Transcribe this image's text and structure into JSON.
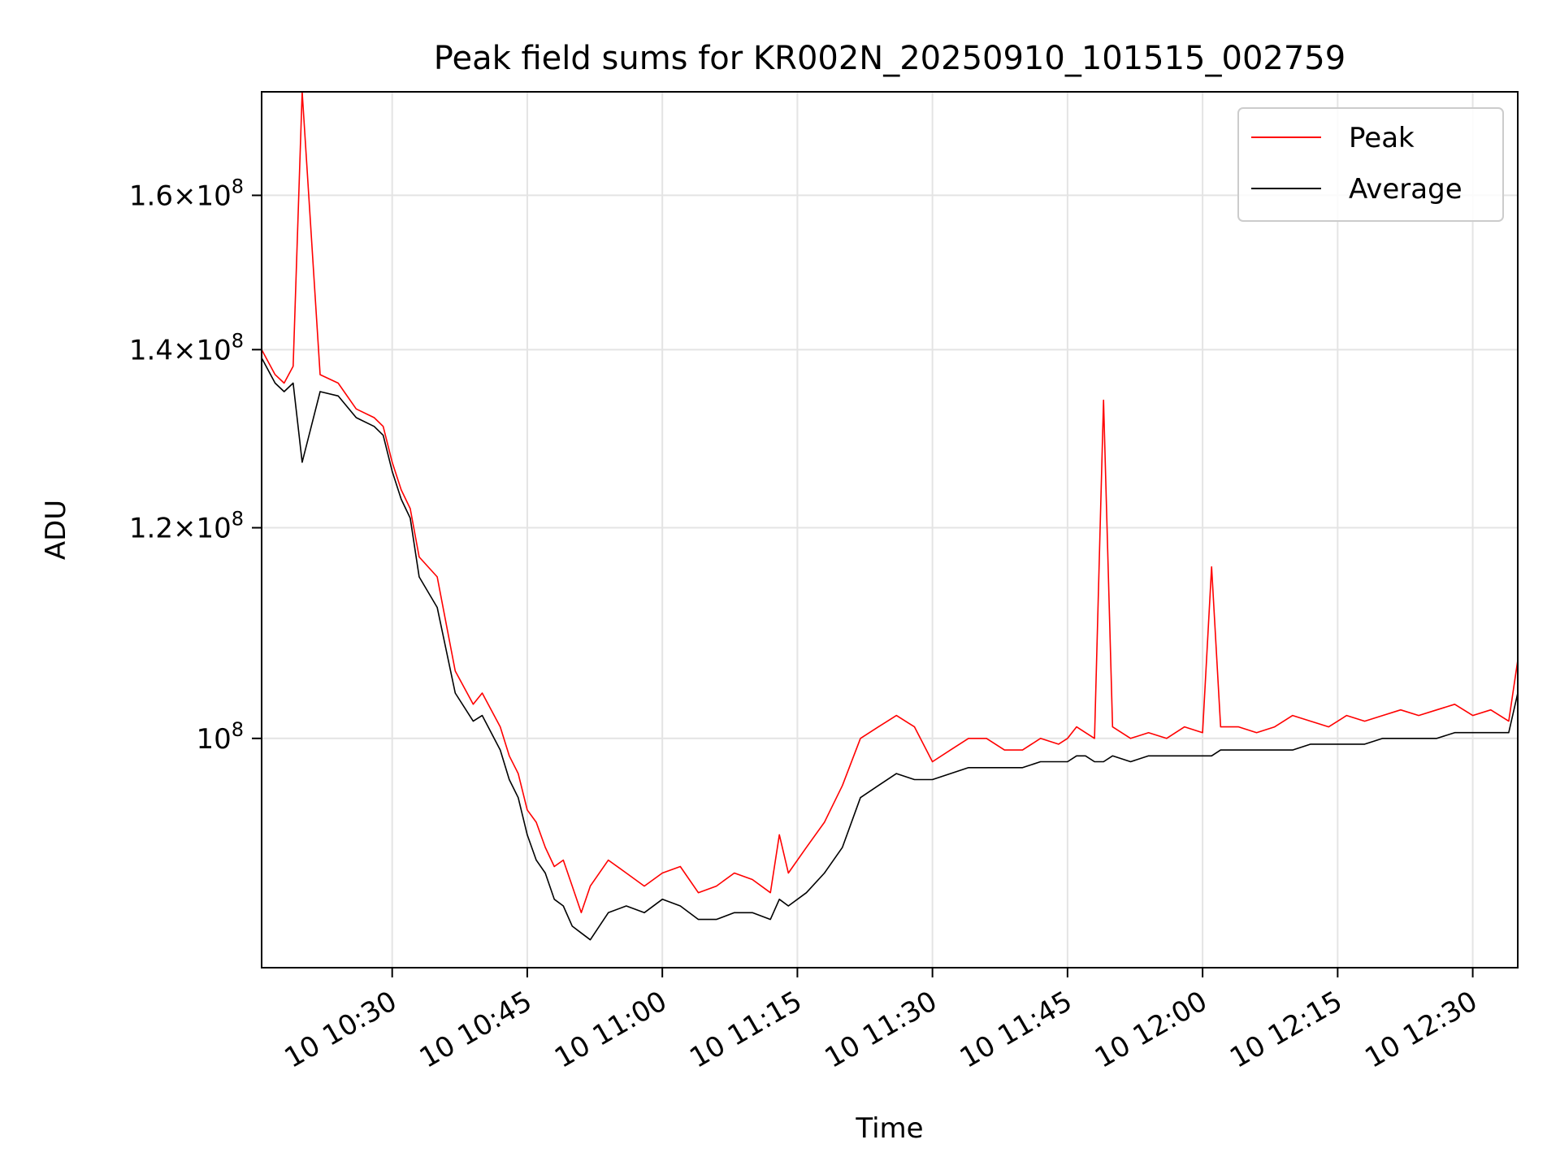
{
  "chart_data": {
    "type": "line",
    "title": "Peak field sums for KR002N_20250910_101515_002759",
    "xlabel": "Time",
    "ylabel": "ADU",
    "yscale": "log",
    "ylim": [
      82000000,
      175000000
    ],
    "xlim": [
      "2025-09-10 10:15:30",
      "2025-09-10 12:35:00"
    ],
    "grid": true,
    "legend_position": "top-right",
    "x_tick_labels": [
      "10 10:30",
      "10 10:45",
      "10 11:00",
      "10 11:15",
      "10 11:30",
      "10 11:45",
      "10 12:00",
      "10 12:15",
      "10 12:30"
    ],
    "y_ticks": [
      {
        "value": 100000000,
        "mantissa": "",
        "base": "10",
        "exp": "8"
      },
      {
        "value": 120000000,
        "mantissa": "1.2",
        "base": "10",
        "exp": "8"
      },
      {
        "value": 140000000,
        "mantissa": "1.4",
        "base": "10",
        "exp": "8"
      },
      {
        "value": 160000000,
        "mantissa": "1.6",
        "base": "10",
        "exp": "8"
      }
    ],
    "x": [
      "2025-09-10 10:15:30",
      "2025-09-10 10:17:00",
      "2025-09-10 10:18:00",
      "2025-09-10 10:19:00",
      "2025-09-10 10:20:00",
      "2025-09-10 10:22:00",
      "2025-09-10 10:24:00",
      "2025-09-10 10:26:00",
      "2025-09-10 10:28:00",
      "2025-09-10 10:29:00",
      "2025-09-10 10:30:00",
      "2025-09-10 10:31:00",
      "2025-09-10 10:32:00",
      "2025-09-10 10:33:00",
      "2025-09-10 10:35:00",
      "2025-09-10 10:37:00",
      "2025-09-10 10:39:00",
      "2025-09-10 10:40:00",
      "2025-09-10 10:42:00",
      "2025-09-10 10:43:00",
      "2025-09-10 10:44:00",
      "2025-09-10 10:45:00",
      "2025-09-10 10:46:00",
      "2025-09-10 10:47:00",
      "2025-09-10 10:48:00",
      "2025-09-10 10:49:00",
      "2025-09-10 10:50:00",
      "2025-09-10 10:51:00",
      "2025-09-10 10:52:00",
      "2025-09-10 10:54:00",
      "2025-09-10 10:56:00",
      "2025-09-10 10:58:00",
      "2025-09-10 11:00:00",
      "2025-09-10 11:02:00",
      "2025-09-10 11:04:00",
      "2025-09-10 11:06:00",
      "2025-09-10 11:08:00",
      "2025-09-10 11:10:00",
      "2025-09-10 11:12:00",
      "2025-09-10 11:13:00",
      "2025-09-10 11:14:00",
      "2025-09-10 11:16:00",
      "2025-09-10 11:18:00",
      "2025-09-10 11:20:00",
      "2025-09-10 11:22:00",
      "2025-09-10 11:24:00",
      "2025-09-10 11:26:00",
      "2025-09-10 11:28:00",
      "2025-09-10 11:30:00",
      "2025-09-10 11:32:00",
      "2025-09-10 11:34:00",
      "2025-09-10 11:36:00",
      "2025-09-10 11:38:00",
      "2025-09-10 11:40:00",
      "2025-09-10 11:42:00",
      "2025-09-10 11:44:00",
      "2025-09-10 11:45:00",
      "2025-09-10 11:46:00",
      "2025-09-10 11:47:00",
      "2025-09-10 11:48:00",
      "2025-09-10 11:49:00",
      "2025-09-10 11:50:00",
      "2025-09-10 11:52:00",
      "2025-09-10 11:54:00",
      "2025-09-10 11:56:00",
      "2025-09-10 11:58:00",
      "2025-09-10 12:00:00",
      "2025-09-10 12:01:00",
      "2025-09-10 12:02:00",
      "2025-09-10 12:04:00",
      "2025-09-10 12:06:00",
      "2025-09-10 12:08:00",
      "2025-09-10 12:10:00",
      "2025-09-10 12:12:00",
      "2025-09-10 12:14:00",
      "2025-09-10 12:16:00",
      "2025-09-10 12:18:00",
      "2025-09-10 12:20:00",
      "2025-09-10 12:22:00",
      "2025-09-10 12:24:00",
      "2025-09-10 12:26:00",
      "2025-09-10 12:28:00",
      "2025-09-10 12:30:00",
      "2025-09-10 12:32:00",
      "2025-09-10 12:34:00",
      "2025-09-10 12:35:00"
    ],
    "series": [
      {
        "name": "Peak",
        "color": "#ff0000",
        "values": [
          140000000,
          137000000,
          136000000,
          138000000,
          175000000,
          137000000,
          136000000,
          133000000,
          132000000,
          131000000,
          127000000,
          124000000,
          122000000,
          117000000,
          115000000,
          106000000,
          103000000,
          104000000,
          101000000,
          98500000,
          97000000,
          94000000,
          93000000,
          91000000,
          89500000,
          90000000,
          88000000,
          86000000,
          88000000,
          90000000,
          89000000,
          88000000,
          89000000,
          89500000,
          87500000,
          88000000,
          89000000,
          88500000,
          87500000,
          92000000,
          89000000,
          91000000,
          93000000,
          96000000,
          100000000,
          101000000,
          102000000,
          101000000,
          98000000,
          99000000,
          100000000,
          100000000,
          99000000,
          99000000,
          100000000,
          99500000,
          100000000,
          101000000,
          100500000,
          100000000,
          134000000,
          101000000,
          100000000,
          100500000,
          100000000,
          101000000,
          100500000,
          116000000,
          101000000,
          101000000,
          100500000,
          101000000,
          102000000,
          101500000,
          101000000,
          102000000,
          101500000,
          102000000,
          102500000,
          102000000,
          102500000,
          103000000,
          102000000,
          102500000,
          101500000,
          107000000
        ]
      },
      {
        "name": "Average",
        "color": "#000000",
        "values": [
          139000000,
          136000000,
          135000000,
          136000000,
          127000000,
          135000000,
          134500000,
          132000000,
          131000000,
          130000000,
          126000000,
          123000000,
          121000000,
          115000000,
          112000000,
          104000000,
          101500000,
          102000000,
          99000000,
          96500000,
          95000000,
          92000000,
          90000000,
          89000000,
          87000000,
          86500000,
          85000000,
          84500000,
          84000000,
          86000000,
          86500000,
          86000000,
          87000000,
          86500000,
          85500000,
          85500000,
          86000000,
          86000000,
          85500000,
          87000000,
          86500000,
          87500000,
          89000000,
          91000000,
          95000000,
          96000000,
          97000000,
          96500000,
          96500000,
          97000000,
          97500000,
          97500000,
          97500000,
          97500000,
          98000000,
          98000000,
          98000000,
          98500000,
          98500000,
          98000000,
          98000000,
          98500000,
          98000000,
          98500000,
          98500000,
          98500000,
          98500000,
          98500000,
          99000000,
          99000000,
          99000000,
          99000000,
          99000000,
          99500000,
          99500000,
          99500000,
          99500000,
          100000000,
          100000000,
          100000000,
          100000000,
          100500000,
          100500000,
          100500000,
          100500000,
          104000000
        ]
      }
    ]
  }
}
